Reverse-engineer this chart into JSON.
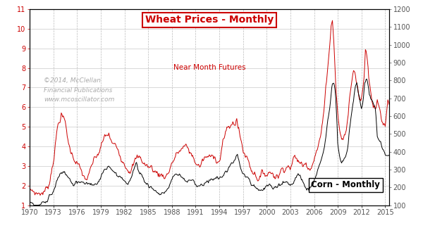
{
  "title_line1": "Wheat Prices - Monthly",
  "title_line2": "Near Month Futures",
  "watermark": "©2014, McClellan\nFinancial Publications\nwww.mcoscillator.com",
  "corn_label": "Corn - Monthly",
  "left_yticks": [
    1,
    2,
    3,
    4,
    5,
    6,
    7,
    8,
    9,
    10,
    11
  ],
  "right_yticks": [
    100,
    200,
    300,
    400,
    500,
    600,
    700,
    800,
    900,
    1000,
    1100,
    1200
  ],
  "left_ylim": [
    1.0,
    11.0
  ],
  "right_ylim": [
    100,
    1200
  ],
  "xlim_start": 1970.0,
  "xlim_end": 2015.5,
  "xticks": [
    1970,
    1973,
    1976,
    1979,
    1982,
    1985,
    1988,
    1991,
    1994,
    1997,
    2000,
    2003,
    2006,
    2009,
    2012,
    2015
  ],
  "wheat_color": "#cc0000",
  "corn_color": "#000000",
  "background_color": "#ffffff",
  "grid_color": "#bbbbbb",
  "title_box_color": "#cc0000"
}
